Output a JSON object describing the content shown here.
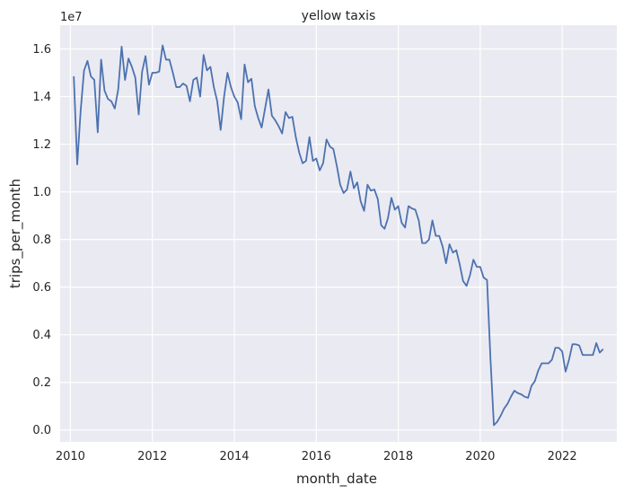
{
  "chart_data": {
    "type": "line",
    "title": "yellow taxis",
    "xlabel": "month_date",
    "ylabel": "trips_per_month",
    "y_offset_text": "1e7",
    "x_ticks": [
      "2010",
      "2012",
      "2014",
      "2016",
      "2018",
      "2020",
      "2022"
    ],
    "y_ticks": [
      "0.0",
      "0.2",
      "0.4",
      "0.6",
      "0.8",
      "1.0",
      "1.2",
      "1.4",
      "1.6"
    ],
    "xlim": [
      "2009-10",
      "2023-05"
    ],
    "ylim": [
      -0.05,
      1.7
    ],
    "y_scale": "1e7",
    "grid": true,
    "background": "#eaeaf2",
    "line_color": "#4c72b0",
    "series": [
      {
        "x": [
          "2010-02",
          "2010-03",
          "2010-04",
          "2010-05",
          "2010-06",
          "2010-07",
          "2010-08",
          "2010-09",
          "2010-10",
          "2010-11",
          "2010-12",
          "2011-01",
          "2011-02",
          "2011-03",
          "2011-04",
          "2011-05",
          "2011-06",
          "2011-07",
          "2011-08",
          "2011-09",
          "2011-10",
          "2011-11",
          "2011-12",
          "2012-01",
          "2012-02",
          "2012-03",
          "2012-04",
          "2012-05",
          "2012-06",
          "2012-07",
          "2012-08",
          "2012-09",
          "2012-10",
          "2012-11",
          "2012-12",
          "2013-01",
          "2013-02",
          "2013-03",
          "2013-04",
          "2013-05",
          "2013-06",
          "2013-07",
          "2013-08",
          "2013-09",
          "2013-10",
          "2013-11",
          "2013-12",
          "2014-01",
          "2014-02",
          "2014-03",
          "2014-04",
          "2014-05",
          "2014-06",
          "2014-07",
          "2014-08",
          "2014-09",
          "2014-10",
          "2014-11",
          "2014-12",
          "2015-01",
          "2015-02",
          "2015-03",
          "2015-04",
          "2015-05",
          "2015-06",
          "2015-07",
          "2015-08",
          "2015-09",
          "2015-10",
          "2015-11",
          "2015-12",
          "2016-01",
          "2016-02",
          "2016-03",
          "2016-04",
          "2016-05",
          "2016-06",
          "2016-07",
          "2016-08",
          "2016-09",
          "2016-10",
          "2016-11",
          "2016-12",
          "2017-01",
          "2017-02",
          "2017-03",
          "2017-04",
          "2017-05",
          "2017-06",
          "2017-07",
          "2017-08",
          "2017-09",
          "2017-10",
          "2017-11",
          "2017-12",
          "2018-01",
          "2018-02",
          "2018-03",
          "2018-04",
          "2018-05",
          "2018-06",
          "2018-07",
          "2018-08",
          "2018-09",
          "2018-10",
          "2018-11",
          "2018-12",
          "2019-01",
          "2019-02",
          "2019-03",
          "2019-04",
          "2019-05",
          "2019-06",
          "2019-07",
          "2019-08",
          "2019-09",
          "2019-10",
          "2019-11",
          "2019-12",
          "2020-01",
          "2020-02",
          "2020-03",
          "2020-04",
          "2020-05",
          "2020-06",
          "2020-07",
          "2020-08",
          "2020-09",
          "2020-10",
          "2020-11",
          "2020-12",
          "2021-01",
          "2021-02",
          "2021-03",
          "2021-04",
          "2021-05",
          "2021-06",
          "2021-07",
          "2021-08",
          "2021-09",
          "2021-10",
          "2021-11",
          "2021-12",
          "2022-01",
          "2022-02",
          "2022-03",
          "2022-04",
          "2022-05",
          "2022-06",
          "2022-07",
          "2022-08",
          "2022-09",
          "2022-10",
          "2022-11",
          "2022-12",
          "2023-01"
        ],
        "y": [
          1.485,
          1.115,
          1.34,
          1.51,
          1.55,
          1.485,
          1.47,
          1.25,
          1.555,
          1.425,
          1.39,
          1.38,
          1.35,
          1.43,
          1.61,
          1.47,
          1.56,
          1.525,
          1.48,
          1.325,
          1.505,
          1.57,
          1.45,
          1.5,
          1.5,
          1.505,
          1.615,
          1.555,
          1.555,
          1.5,
          1.44,
          1.44,
          1.455,
          1.445,
          1.38,
          1.47,
          1.48,
          1.4,
          1.575,
          1.51,
          1.525,
          1.44,
          1.38,
          1.26,
          1.4,
          1.5,
          1.44,
          1.4,
          1.375,
          1.305,
          1.535,
          1.46,
          1.475,
          1.36,
          1.31,
          1.27,
          1.35,
          1.43,
          1.32,
          1.3,
          1.275,
          1.245,
          1.335,
          1.31,
          1.315,
          1.23,
          1.165,
          1.12,
          1.13,
          1.23,
          1.13,
          1.14,
          1.09,
          1.12,
          1.22,
          1.19,
          1.18,
          1.11,
          1.03,
          0.995,
          1.01,
          1.085,
          1.015,
          1.04,
          0.96,
          0.92,
          1.03,
          1.005,
          1.01,
          0.97,
          0.86,
          0.845,
          0.89,
          0.975,
          0.925,
          0.94,
          0.87,
          0.85,
          0.94,
          0.93,
          0.925,
          0.88,
          0.785,
          0.785,
          0.8,
          0.88,
          0.815,
          0.815,
          0.77,
          0.7,
          0.78,
          0.745,
          0.755,
          0.695,
          0.625,
          0.605,
          0.65,
          0.715,
          0.685,
          0.685,
          0.64,
          0.63,
          0.3,
          0.02,
          0.035,
          0.06,
          0.09,
          0.11,
          0.14,
          0.165,
          0.155,
          0.15,
          0.14,
          0.135,
          0.185,
          0.205,
          0.25,
          0.28,
          0.28,
          0.28,
          0.295,
          0.345,
          0.345,
          0.33,
          0.245,
          0.295,
          0.36,
          0.36,
          0.355,
          0.315,
          0.315,
          0.315,
          0.315,
          0.365,
          0.325,
          0.34
        ]
      }
    ]
  }
}
